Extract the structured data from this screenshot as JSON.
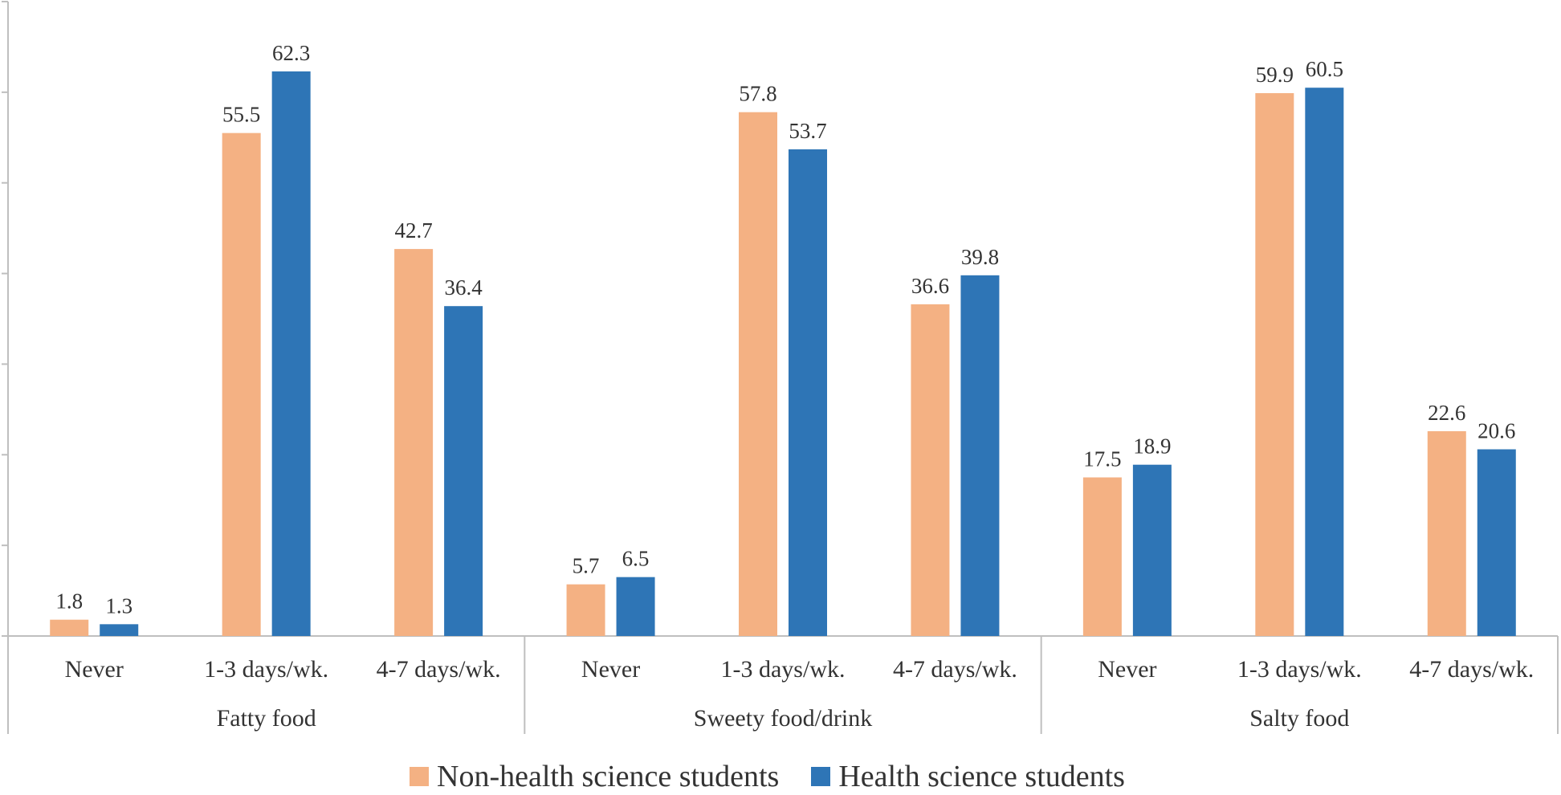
{
  "chart_data": {
    "type": "bar",
    "title": "",
    "xlabel": "",
    "ylabel": "",
    "ylim": [
      0,
      70
    ],
    "grid": false,
    "legend_position": "bottom",
    "groups": [
      {
        "name": "Fatty food",
        "categories": [
          "Never",
          "1-3 days/wk.",
          "4-7 days/wk."
        ]
      },
      {
        "name": "Sweety food/drink",
        "categories": [
          "Never",
          "1-3 days/wk.",
          "4-7 days/wk."
        ]
      },
      {
        "name": "Salty food",
        "categories": [
          "Never",
          "1-3 days/wk.",
          "4-7 days/wk."
        ]
      }
    ],
    "series": [
      {
        "name": "Non-health science students",
        "color": "#F4B183",
        "values": [
          1.8,
          55.5,
          42.7,
          5.7,
          57.8,
          36.6,
          17.5,
          59.9,
          22.6
        ],
        "labels": [
          "1.8",
          "55.5",
          "42.7",
          "5.7",
          "57.8",
          "36.6",
          "17.5",
          "59.9",
          "22.6"
        ]
      },
      {
        "name": "Health science students",
        "color": "#2E75B6",
        "values": [
          1.3,
          62.3,
          36.4,
          6.5,
          53.7,
          39.8,
          18.9,
          60.5,
          20.6
        ],
        "labels": [
          "1.3",
          "62.3",
          "36.4",
          "6.5",
          "53.7",
          "39.8",
          "18.9",
          "60.5",
          "20.6"
        ]
      }
    ],
    "axis_color": "#BFBFBF"
  }
}
